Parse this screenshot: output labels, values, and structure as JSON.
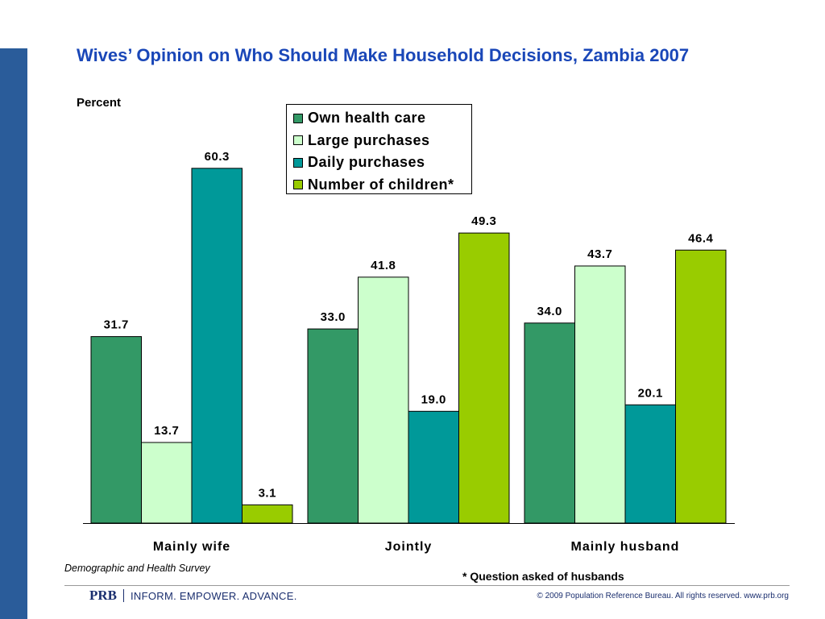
{
  "title": "Wives’ Opinion on Who Should Make Household Decisions, Zambia 2007",
  "ylabel": "Percent",
  "source": "Demographic and Health Survey",
  "footnote": "* Question asked of husbands",
  "footer": {
    "logo": "PRB",
    "tagline": "INFORM. EMPOWER. ADVANCE.",
    "copyright": "© 2009 Population Reference Bureau. All rights reserved. www.prb.org"
  },
  "colors": {
    "accent_bar": "#2a5c9a",
    "title": "#1a47b8"
  },
  "chart_data": {
    "type": "bar",
    "title": "Wives’ Opinion on Who Should Make Household Decisions, Zambia 2007",
    "xlabel": "",
    "ylabel": "Percent",
    "ylim": [
      0,
      70
    ],
    "grid": false,
    "legend_position": "top-center",
    "categories": [
      "Mainly wife",
      "Jointly",
      "Mainly husband"
    ],
    "series": [
      {
        "name": "Own health care",
        "color": "#339966",
        "values": [
          31.7,
          33.0,
          34.0
        ]
      },
      {
        "name": "Large purchases",
        "color": "#ccffcc",
        "values": [
          13.7,
          41.8,
          43.7
        ]
      },
      {
        "name": "Daily purchases",
        "color": "#009999",
        "values": [
          60.3,
          19.0,
          20.1
        ]
      },
      {
        "name": "Number of children*",
        "color": "#99cc00",
        "values": [
          3.1,
          49.3,
          46.4
        ]
      }
    ]
  }
}
